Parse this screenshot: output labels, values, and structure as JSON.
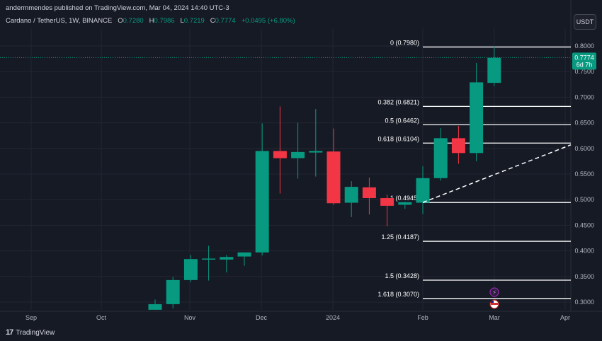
{
  "header": {
    "published_line": "andermmendes published on TradingView.com, Mar 04, 2024 14:40 UTC-3"
  },
  "symbol": {
    "name": "Cardano / TetherUS, 1W, BINANCE",
    "open_label": "O",
    "open": "0.7280",
    "high_label": "H",
    "high": "0.7986",
    "low_label": "L",
    "low": "0.7219",
    "close_label": "C",
    "close": "0.7774",
    "change": "+0.0495 (+6.80%)"
  },
  "currency_button": "USDT",
  "logo_text": "TradingView",
  "logo_mark": "17",
  "price_tag": {
    "price": "0.7774",
    "countdown": "6d 7h"
  },
  "colors": {
    "background": "#161a25",
    "up": "#089981",
    "down": "#f23645",
    "grid": "#232632",
    "fib_line": "#ffffff"
  },
  "chart_data": {
    "type": "candlestick",
    "title": "",
    "xlabel": "",
    "ylabel": "",
    "ylim": [
      0.28,
      0.82
    ],
    "y_ticks": [
      "0.8000",
      "0.7500",
      "0.7000",
      "0.6500",
      "0.6000",
      "0.5500",
      "0.5000",
      "0.4500",
      "0.4000",
      "0.3500",
      "0.3000"
    ],
    "x_ticks": [
      "Sep",
      "Oct",
      "Nov",
      "Dec",
      "2024",
      "Feb",
      "Mar",
      "Apr"
    ],
    "candles": [
      {
        "o": 0.285,
        "h": 0.305,
        "l": 0.285,
        "c": 0.296
      },
      {
        "o": 0.296,
        "h": 0.349,
        "l": 0.288,
        "c": 0.343
      },
      {
        "o": 0.343,
        "h": 0.392,
        "l": 0.339,
        "c": 0.384
      },
      {
        "o": 0.384,
        "h": 0.41,
        "l": 0.342,
        "c": 0.385
      },
      {
        "o": 0.383,
        "h": 0.392,
        "l": 0.358,
        "c": 0.388
      },
      {
        "o": 0.389,
        "h": 0.395,
        "l": 0.371,
        "c": 0.397
      },
      {
        "o": 0.397,
        "h": 0.649,
        "l": 0.391,
        "c": 0.595
      },
      {
        "o": 0.595,
        "h": 0.682,
        "l": 0.512,
        "c": 0.581
      },
      {
        "o": 0.581,
        "h": 0.65,
        "l": 0.541,
        "c": 0.593
      },
      {
        "o": 0.592,
        "h": 0.677,
        "l": 0.545,
        "c": 0.595
      },
      {
        "o": 0.594,
        "h": 0.639,
        "l": 0.49,
        "c": 0.493
      },
      {
        "o": 0.494,
        "h": 0.536,
        "l": 0.466,
        "c": 0.525
      },
      {
        "o": 0.524,
        "h": 0.543,
        "l": 0.471,
        "c": 0.503
      },
      {
        "o": 0.503,
        "h": 0.51,
        "l": 0.448,
        "c": 0.488
      },
      {
        "o": 0.49,
        "h": 0.496,
        "l": 0.482,
        "c": 0.495
      },
      {
        "o": 0.494,
        "h": 0.565,
        "l": 0.472,
        "c": 0.542
      },
      {
        "o": 0.542,
        "h": 0.64,
        "l": 0.537,
        "c": 0.62
      },
      {
        "o": 0.62,
        "h": 0.644,
        "l": 0.57,
        "c": 0.591
      },
      {
        "o": 0.591,
        "h": 0.767,
        "l": 0.575,
        "c": 0.729
      },
      {
        "o": 0.728,
        "h": 0.799,
        "l": 0.722,
        "c": 0.777
      }
    ],
    "fib_levels": [
      {
        "label": "0 (0.7980)",
        "value": 0.798
      },
      {
        "label": "0.382 (0.6821)",
        "value": 0.6821
      },
      {
        "label": "0.5 (0.6462)",
        "value": 0.6462
      },
      {
        "label": "0.618 (0.6104)",
        "value": 0.6104
      },
      {
        "label": "1 (0.4945)",
        "value": 0.4945
      },
      {
        "label": "1.25 (0.4187)",
        "value": 0.4187
      },
      {
        "label": "1.5 (0.3428)",
        "value": 0.3428
      },
      {
        "label": "1.618 (0.3070)",
        "value": 0.307
      }
    ],
    "trendline": {
      "start_candle": 15,
      "start_price": 0.4945,
      "end_price": 0.607
    },
    "last_price": 0.7774
  }
}
